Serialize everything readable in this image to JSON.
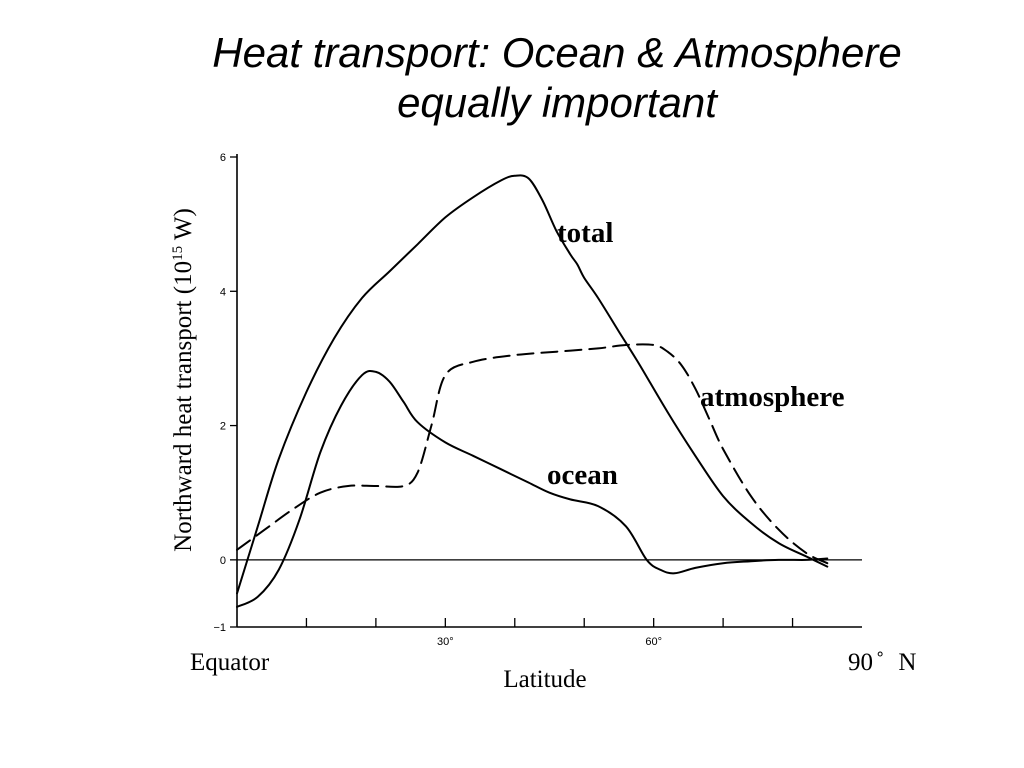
{
  "title": {
    "line1": "Heat transport: Ocean & Atmosphere",
    "line2": "equally important"
  },
  "chart_data": {
    "type": "line",
    "xlabel": "Latitude",
    "ylabel": "Northward heat transport (10",
    "ylabel_sup": "15",
    "ylabel_end": " W)",
    "x_start_label": "Equator",
    "x_end_label": "90",
    "x_end_degree": "˚",
    "x_end_suffix": "N",
    "xlim": [
      0,
      90
    ],
    "ylim": [
      -1,
      6
    ],
    "yticks": [
      -1,
      0,
      2,
      4,
      6
    ],
    "xticks_labeled": [
      {
        "value": 30,
        "label": "30°"
      },
      {
        "value": 60,
        "label": "60°"
      }
    ],
    "xticks_minor": [
      10,
      20,
      40,
      50,
      70,
      80
    ],
    "zero_line": true,
    "series": [
      {
        "name": "total",
        "style": "solid",
        "x": [
          0,
          3,
          6,
          10,
          14,
          18,
          22,
          26,
          30,
          34,
          38,
          40,
          42,
          44,
          46,
          48,
          49,
          50,
          52,
          55,
          58,
          62,
          66,
          70,
          74,
          78,
          82,
          85
        ],
        "y": [
          -0.5,
          0.5,
          1.5,
          2.5,
          3.3,
          3.9,
          4.3,
          4.7,
          5.1,
          5.4,
          5.65,
          5.72,
          5.68,
          5.35,
          4.9,
          4.55,
          4.4,
          4.2,
          3.9,
          3.4,
          2.9,
          2.2,
          1.55,
          0.95,
          0.55,
          0.25,
          0.05,
          -0.1
        ]
      },
      {
        "name": "atmosphere",
        "style": "dashed",
        "x": [
          0,
          4,
          8,
          12,
          16,
          20,
          24,
          26,
          28,
          30,
          34,
          40,
          46,
          52,
          56,
          60,
          62,
          64,
          66,
          68,
          70,
          74,
          78,
          82,
          85
        ],
        "y": [
          0.15,
          0.45,
          0.75,
          1.0,
          1.1,
          1.1,
          1.1,
          1.3,
          2.0,
          2.75,
          2.95,
          3.05,
          3.1,
          3.15,
          3.2,
          3.2,
          3.1,
          2.9,
          2.55,
          2.1,
          1.65,
          0.95,
          0.45,
          0.1,
          -0.05
        ]
      },
      {
        "name": "ocean",
        "style": "solid",
        "x": [
          0,
          3,
          6,
          9,
          12,
          15,
          18,
          20,
          22,
          24,
          26,
          30,
          34,
          38,
          42,
          45,
          48,
          52,
          56,
          59,
          61,
          63,
          66,
          70,
          74,
          78,
          82,
          85
        ],
        "y": [
          -0.7,
          -0.55,
          -0.15,
          0.6,
          1.6,
          2.3,
          2.75,
          2.8,
          2.65,
          2.35,
          2.05,
          1.75,
          1.55,
          1.35,
          1.15,
          1.0,
          0.9,
          0.8,
          0.5,
          0.0,
          -0.15,
          -0.2,
          -0.12,
          -0.05,
          -0.02,
          0.0,
          0.0,
          0.02
        ]
      }
    ]
  },
  "annotations": {
    "total": "total",
    "atmosphere": "atmosphere",
    "ocean": "ocean"
  }
}
